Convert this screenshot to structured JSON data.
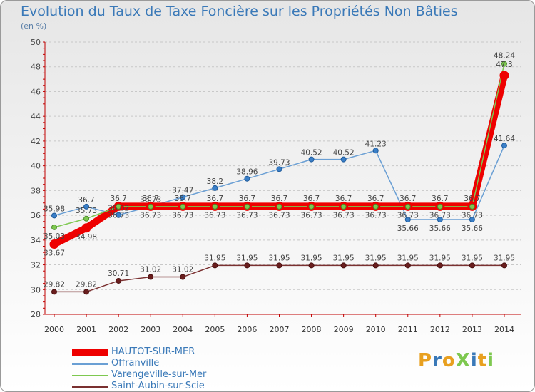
{
  "title": "Evolution du Taux de Taxe Foncière sur les Propriétés Non Bâties",
  "unit_label": "(en %)",
  "logo": "ProXiti",
  "colors": {
    "title": "#3a79b8",
    "axis": "#c00000",
    "grid": "#c8c8c8"
  },
  "chart_data": {
    "type": "line",
    "x": [
      "2000",
      "2001",
      "2002",
      "2003",
      "2004",
      "2005",
      "2006",
      "2007",
      "2008",
      "2009",
      "2010",
      "2011",
      "2012",
      "2013",
      "2014"
    ],
    "ylim": [
      28,
      50
    ],
    "yticks": [
      28,
      30,
      32,
      34,
      36,
      38,
      40,
      42,
      44,
      46,
      48,
      50
    ],
    "grid": true,
    "legend_position": "bottom-left",
    "series": [
      {
        "name": "HAUTOT-SUR-MER",
        "color": "#ee0000",
        "values": [
          33.67,
          34.98,
          36.73,
          36.73,
          36.73,
          36.73,
          36.73,
          36.73,
          36.73,
          36.73,
          36.73,
          36.73,
          36.73,
          36.73,
          47.3
        ],
        "labels": [
          "33.67",
          "34.98",
          "36.73",
          "36.73",
          "36.73",
          "36.73",
          "36.73",
          "36.73",
          "36.73",
          "36.73",
          "36.73",
          "36.73",
          "36.73",
          "36.73",
          "47.3"
        ]
      },
      {
        "name": "Offranville",
        "color": "#6a9fd4",
        "values": [
          35.98,
          36.7,
          36.02,
          36.73,
          37.47,
          38.2,
          38.96,
          39.73,
          40.52,
          40.52,
          41.23,
          35.66,
          35.66,
          35.66,
          41.64
        ],
        "labels": [
          "35.98",
          "36.7",
          "36.02",
          "36.73",
          "37.47",
          "38.2",
          "38.96",
          "39.73",
          "40.52",
          "40.52",
          "41.23",
          "35.66",
          "35.66",
          "35.66",
          "41.64"
        ]
      },
      {
        "name": "Varengeville-sur-Mer",
        "color": "#7ec850",
        "values": [
          35.03,
          35.73,
          36.7,
          36.7,
          36.7,
          36.7,
          36.7,
          36.7,
          36.7,
          36.7,
          36.7,
          36.7,
          36.7,
          36.7,
          48.24
        ],
        "labels": [
          "35.03",
          "35.73",
          "36.7",
          "36.7",
          "36.7",
          "36.7",
          "36.7",
          "36.7",
          "36.7",
          "36.7",
          "36.7",
          "36.7",
          "36.7",
          "36.7",
          "48.24"
        ]
      },
      {
        "name": "Saint-Aubin-sur-Scie",
        "color": "#7a3030",
        "values": [
          29.82,
          29.82,
          30.71,
          31.02,
          31.02,
          31.95,
          31.95,
          31.95,
          31.95,
          31.95,
          31.95,
          31.95,
          31.95,
          31.95,
          31.95
        ],
        "labels": [
          "29.82",
          "29.82",
          "30.71",
          "31.02",
          "31.02",
          "31.95",
          "31.95",
          "31.95",
          "31.95",
          "31.95",
          "31.95",
          "31.95",
          "31.95",
          "31.95",
          "31.95"
        ]
      }
    ]
  }
}
